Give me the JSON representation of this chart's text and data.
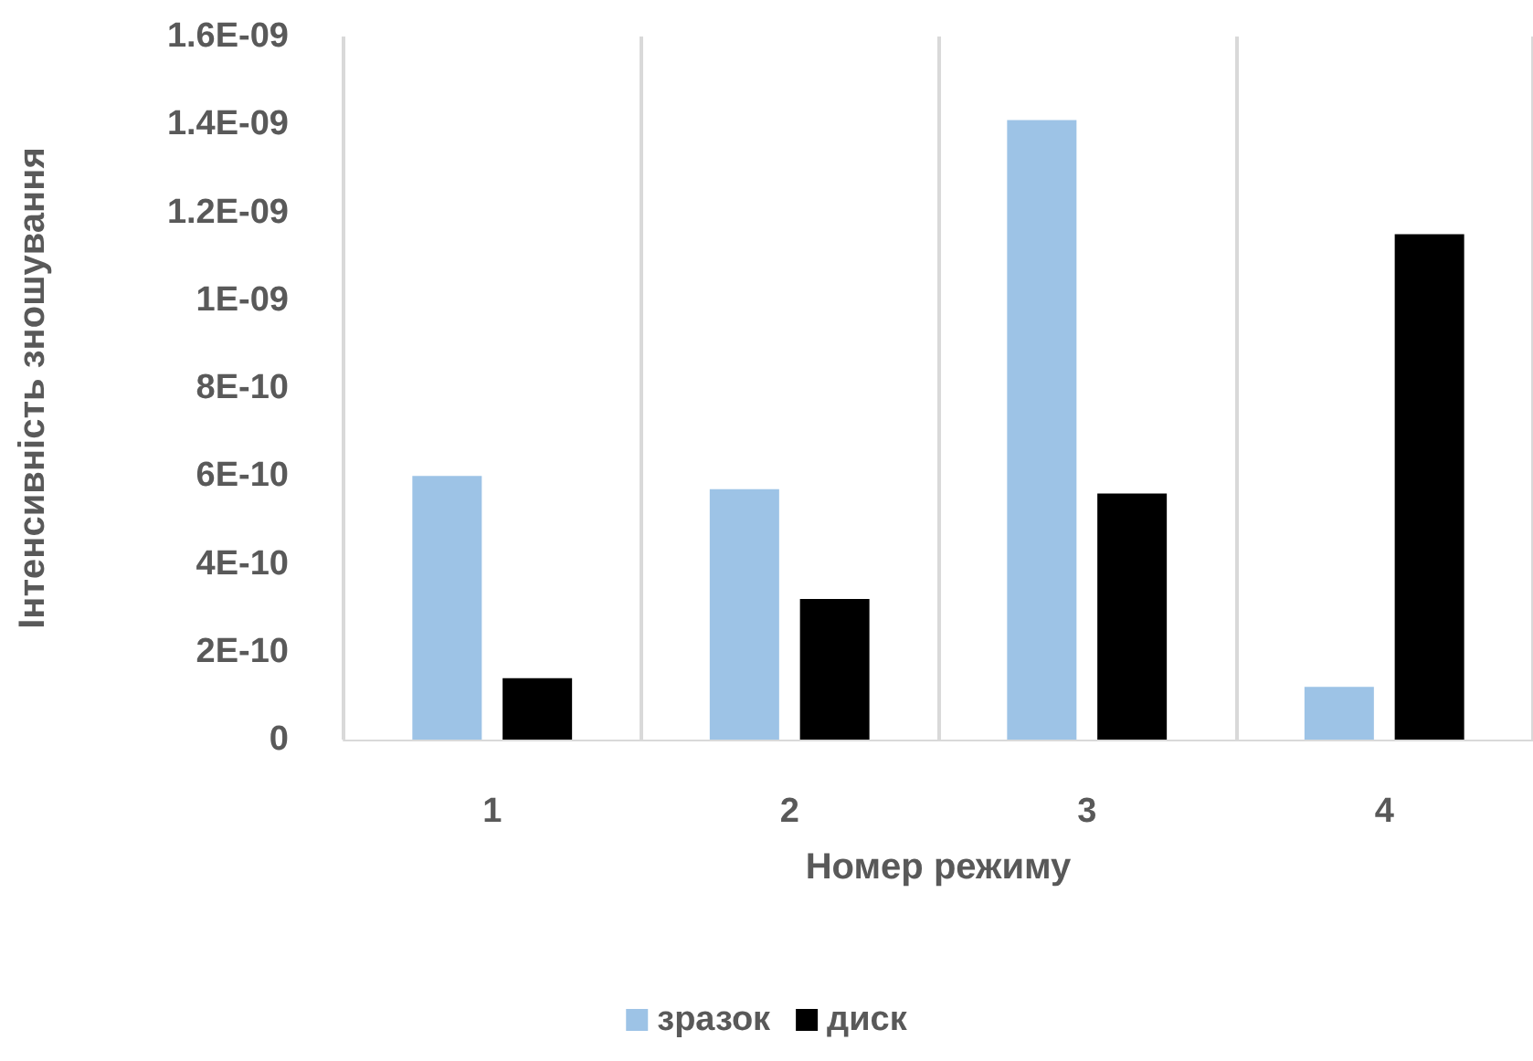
{
  "chart_data": {
    "type": "bar",
    "xlabel": "Номер режиму",
    "ylabel": "Інтенсивність зношування",
    "categories": [
      "1",
      "2",
      "3",
      "4"
    ],
    "series": [
      {
        "name": "зразок",
        "color": "#9dc3e6",
        "values": [
          6e-10,
          5.7e-10,
          1.41e-09,
          1.2e-10
        ]
      },
      {
        "name": "диск",
        "color": "#000000",
        "values": [
          1.4e-10,
          3.2e-10,
          5.6e-10,
          1.15e-09
        ]
      }
    ],
    "ylim": [
      0,
      1.6e-09
    ],
    "yticks": [
      0,
      {
        "value": 2e-10,
        "label": "2E-10"
      },
      {
        "value": 4e-10,
        "label": "4E-10"
      },
      {
        "value": 6e-10,
        "label": "6E-10"
      },
      {
        "value": 8e-10,
        "label": "8E-10"
      },
      {
        "value": 1e-09,
        "label": "1E-09"
      },
      {
        "value": 1.2e-09,
        "label": "1.2E-09"
      },
      {
        "value": 1.4e-09,
        "label": "1.4E-09"
      },
      {
        "value": 1.6e-09,
        "label": "1.6E-09"
      }
    ],
    "grid": "x",
    "legend": "bottom"
  }
}
